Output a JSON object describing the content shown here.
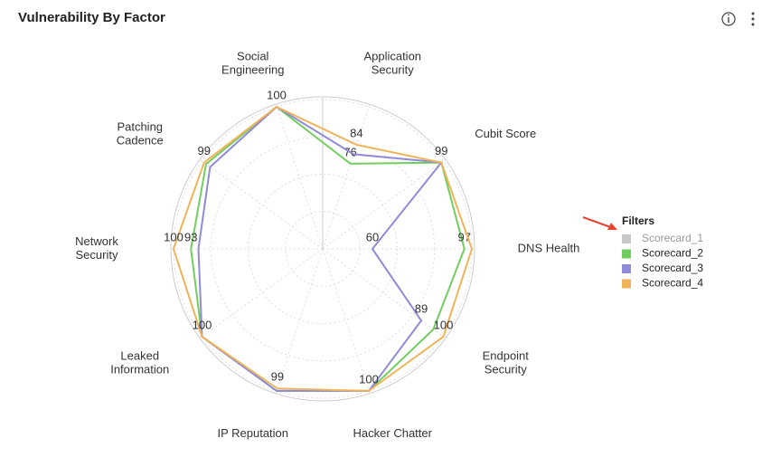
{
  "chart_data": {
    "type": "radar",
    "title": "Vulnerability By Factor",
    "categories": [
      [
        "Social",
        "Engineering"
      ],
      [
        "Application",
        "Security"
      ],
      [
        "Cubit Score"
      ],
      [
        "DNS Health"
      ],
      [
        "Endpoint",
        "Security"
      ],
      [
        "Hacker Chatter"
      ],
      [
        "IP Reputation"
      ],
      [
        "Leaked",
        "Information"
      ],
      [
        "Network",
        "Security"
      ],
      [
        "Patching",
        "Cadence"
      ]
    ],
    "rlim": [
      40,
      100
    ],
    "rticks": [
      55,
      70,
      85,
      100
    ],
    "legend_title": "Filters",
    "series": [
      {
        "name": "Scorecard_1",
        "color": "#c8c8c8",
        "hidden": true
      },
      {
        "name": "Scorecard_2",
        "color": "#72cd5f",
        "values": [
          100,
          76,
          99,
          97,
          95,
          100,
          100,
          100,
          93,
          98
        ],
        "value_labels": [
          null,
          "76",
          null,
          "97",
          null,
          null,
          null,
          null,
          "93",
          null
        ]
      },
      {
        "name": "Scorecard_3",
        "color": "#8f8bd6",
        "values": [
          100,
          80,
          99,
          60,
          89,
          100,
          100,
          100,
          90,
          96
        ],
        "value_labels": [
          null,
          null,
          null,
          "60",
          "89",
          null,
          null,
          null,
          null,
          null
        ]
      },
      {
        "name": "Scorecard_4",
        "color": "#f0b35a",
        "values": [
          100,
          84,
          99,
          100,
          100,
          100,
          99,
          100,
          100,
          99
        ],
        "value_labels": [
          "100",
          "84",
          "99",
          null,
          "100",
          "100",
          "99",
          "100",
          "100",
          "99"
        ]
      }
    ]
  }
}
